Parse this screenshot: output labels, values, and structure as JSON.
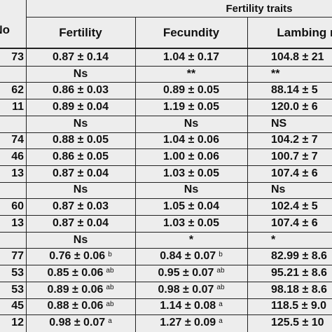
{
  "table": {
    "group_header": "Fertility traits",
    "columns": [
      "No",
      "Fertility",
      "Fecundity",
      "Lambing r"
    ],
    "rows": [
      [
        "73",
        "0.87 ± 0.14",
        "1.04 ± 0.17",
        "104.8 ± 21"
      ],
      [
        "",
        "Ns",
        "**",
        "**"
      ],
      [
        "62",
        "0.86 ± 0.03",
        "0.89 ± 0.05",
        "88.14 ± 5"
      ],
      [
        "11",
        "0.89 ± 0.04",
        "1.19 ± 0.05",
        "120.0 ± 6"
      ],
      [
        "",
        "Ns",
        "Ns",
        "NS"
      ],
      [
        "74",
        "0.88 ± 0.05",
        "1.04 ± 0.06",
        "104.2 ± 7"
      ],
      [
        "46",
        "0.86 ± 0.05",
        "1.00 ± 0.06",
        "100.7 ± 7"
      ],
      [
        "13",
        "0.87 ± 0.04",
        "1.03 ± 0.05",
        "107.4 ± 6"
      ],
      [
        "",
        "Ns",
        "Ns",
        "Ns"
      ],
      [
        "60",
        "0.87 ± 0.03",
        "1.05 ± 0.04",
        "102.4 ± 5"
      ],
      [
        "13",
        "0.87 ± 0.04",
        "1.03 ± 0.05",
        "107.4 ± 6"
      ],
      [
        "",
        "Ns",
        "*",
        "*"
      ],
      [
        "77",
        {
          "text": "0.76 ± 0.06",
          "sup": "b"
        },
        {
          "text": "0.84 ± 0.07",
          "sup": "b"
        },
        "82.99 ± 8.6"
      ],
      [
        "53",
        {
          "text": "0.85 ± 0.06",
          "sup": "ab"
        },
        {
          "text": "0.95 ± 0.07",
          "sup": "ab"
        },
        "95.21 ± 8.6"
      ],
      [
        "53",
        {
          "text": "0.89 ± 0.06",
          "sup": "ab"
        },
        {
          "text": "0.98 ± 0.07",
          "sup": "ab"
        },
        "98.18 ± 8.6"
      ],
      [
        "45",
        {
          "text": "0.88 ± 0.06",
          "sup": "ab"
        },
        {
          "text": "1.14 ± 0.08",
          "sup": "a"
        },
        "118.5 ± 9.0"
      ],
      [
        "12",
        {
          "text": "0.98 ± 0.07",
          "sup": "a"
        },
        {
          "text": "1.27 ± 0.09",
          "sup": "a"
        },
        "125.5 ± 10"
      ]
    ]
  }
}
